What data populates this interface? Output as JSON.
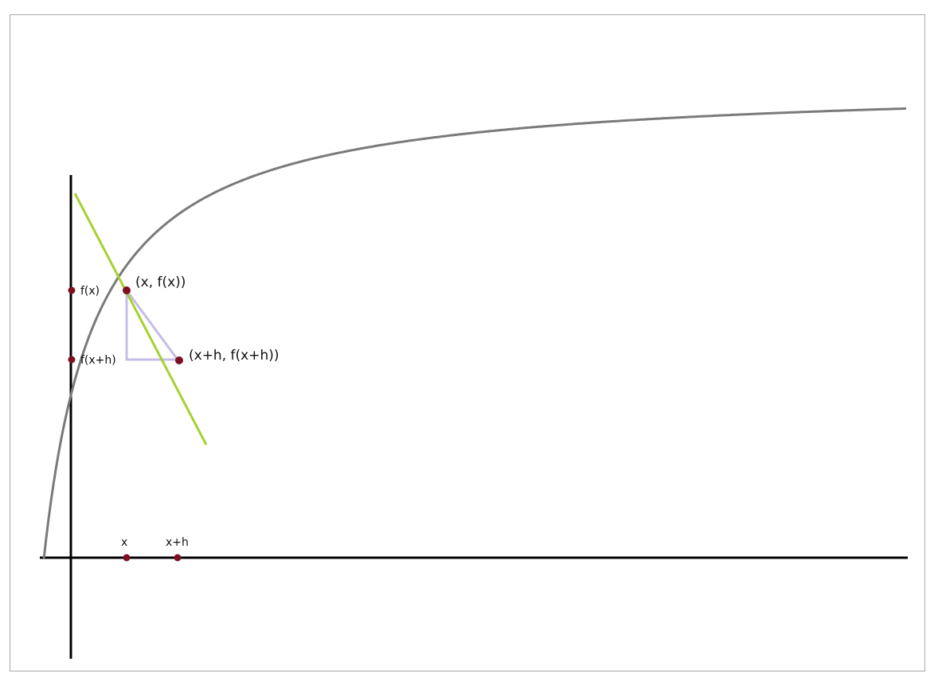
{
  "diagram": {
    "colors": {
      "axis": "#000000",
      "curve": "#7a7a7a",
      "tangent": "#a6d22f",
      "triangle": "#c4bde6",
      "point": "#7d1020",
      "frame": "#a8a8a8"
    },
    "labels": {
      "x_tick": "x",
      "xh_tick": "x+h",
      "fx_tick": "f(x)",
      "fxh_tick": "f(x+h)",
      "point_a": "(x, f(x))",
      "point_b": "(x+h, f(x+h))"
    },
    "curve_type": "decreasing convex curve",
    "elements": [
      "x-axis",
      "y-axis",
      "curve",
      "tangent-line",
      "secant-triangle",
      "points"
    ]
  }
}
